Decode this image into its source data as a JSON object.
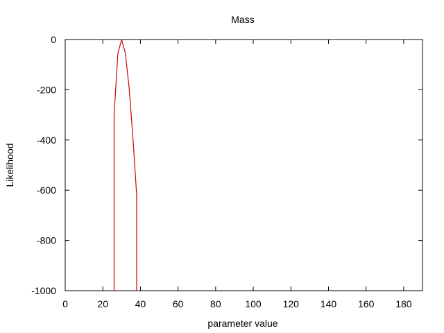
{
  "chart_data": {
    "type": "line",
    "title": "Mass",
    "xlabel": "parameter value",
    "ylabel": "Likelihood",
    "xlim": [
      0,
      190
    ],
    "ylim": [
      -1000,
      0
    ],
    "xticks": [
      0,
      20,
      40,
      60,
      80,
      100,
      120,
      140,
      160,
      180
    ],
    "yticks": [
      0,
      -200,
      -400,
      -600,
      -800,
      -1000
    ],
    "grid": false,
    "legend": "none",
    "series": [
      {
        "color": "#cc0000",
        "x": [
          26,
          26,
          28,
          30,
          32,
          34,
          36,
          38,
          38
        ],
        "y": [
          -1000,
          -300,
          -55,
          0,
          -55,
          -195,
          -390,
          -620,
          -1000
        ]
      }
    ]
  }
}
